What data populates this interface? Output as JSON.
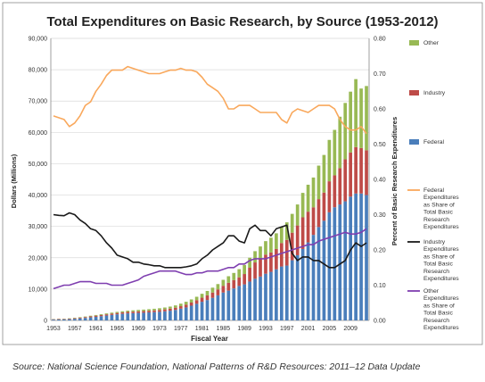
{
  "caption": "Source: National Science Foundation, National Patterns of R&D Resources: 2011–12 Data Update",
  "chart_data": {
    "type": "bar",
    "stacked": true,
    "title": "Total Expenditures on Basic Research, by Source (1953-2012)",
    "xlabel": "Fiscal Year",
    "ylabel": "Dollars (Millions)",
    "y2label": "Percent of Basic Research Expenditures",
    "ylim": [
      0,
      90000
    ],
    "y2lim": [
      0,
      0.8
    ],
    "yticks": [
      "0",
      "10,000",
      "20,000",
      "30,000",
      "40,000",
      "50,000",
      "60,000",
      "70,000",
      "80,000",
      "90,000"
    ],
    "y2ticks": [
      "0.00",
      "0.10",
      "0.20",
      "0.30",
      "0.40",
      "0.50",
      "0.60",
      "0.70",
      "0.80"
    ],
    "xticks": [
      "1953",
      "1957",
      "1961",
      "1965",
      "1969",
      "1973",
      "1977",
      "1981",
      "1985",
      "1989",
      "1993",
      "1997",
      "2001",
      "2005",
      "2009"
    ],
    "grid": "horizontal",
    "legend_position": "right",
    "colors": {
      "federal": "#4a7ebb",
      "industry": "#be4b48",
      "other": "#98b954",
      "federal_share": "#f9a85c",
      "industry_share": "#1a1a1a",
      "other_share": "#7f3fb0"
    },
    "x": [
      1953,
      1954,
      1955,
      1956,
      1957,
      1958,
      1959,
      1960,
      1961,
      1962,
      1963,
      1964,
      1965,
      1966,
      1967,
      1968,
      1969,
      1970,
      1971,
      1972,
      1973,
      1974,
      1975,
      1976,
      1977,
      1978,
      1979,
      1980,
      1981,
      1982,
      1983,
      1984,
      1985,
      1986,
      1987,
      1988,
      1989,
      1990,
      1991,
      1992,
      1993,
      1994,
      1995,
      1996,
      1997,
      1998,
      1999,
      2000,
      2001,
      2002,
      2003,
      2004,
      2005,
      2006,
      2007,
      2008,
      2009,
      2010,
      2011,
      2012
    ],
    "bar_series": [
      {
        "name": "Federal",
        "key": "federal",
        "values": [
          250,
          290,
          330,
          390,
          500,
          650,
          800,
          980,
          1150,
          1350,
          1550,
          1750,
          1950,
          2100,
          2250,
          2300,
          2400,
          2450,
          2550,
          2650,
          2750,
          2900,
          3100,
          3350,
          3750,
          4150,
          4700,
          5300,
          5950,
          6500,
          7200,
          8000,
          8900,
          9500,
          10200,
          11000,
          11500,
          12400,
          13300,
          14000,
          14900,
          15500,
          16300,
          17200,
          17500,
          19200,
          20800,
          22800,
          24900,
          27300,
          29800,
          31800,
          34500,
          36100,
          37000,
          38000,
          39500,
          40500,
          40500,
          40000
        ]
      },
      {
        "name": "Industry",
        "key": "industry",
        "values": [
          130,
          140,
          150,
          170,
          200,
          240,
          270,
          320,
          360,
          380,
          400,
          420,
          430,
          450,
          470,
          490,
          500,
          520,
          530,
          550,
          580,
          620,
          660,
          720,
          800,
          900,
          1000,
          1150,
          1300,
          1500,
          1700,
          1900,
          2150,
          2500,
          2650,
          2750,
          3300,
          4400,
          5200,
          5600,
          6100,
          6200,
          6500,
          7500,
          8200,
          8800,
          9500,
          10100,
          9800,
          8800,
          8900,
          9000,
          9900,
          10200,
          11600,
          13400,
          14100,
          14800,
          14500,
          14300
        ]
      },
      {
        "name": "Other",
        "key": "other",
        "values": [
          70,
          80,
          90,
          110,
          130,
          150,
          170,
          200,
          220,
          250,
          280,
          310,
          340,
          370,
          400,
          430,
          460,
          480,
          500,
          520,
          560,
          600,
          650,
          720,
          800,
          900,
          1000,
          1100,
          1250,
          1400,
          1550,
          1700,
          1900,
          2100,
          2300,
          2600,
          2900,
          3200,
          3600,
          4000,
          4300,
          4700,
          5000,
          5200,
          5600,
          6000,
          6700,
          7800,
          8600,
          9500,
          10700,
          12000,
          13200,
          14500,
          16400,
          18000,
          19400,
          21700,
          19000,
          20500
        ]
      }
    ],
    "line_series": [
      {
        "name": "Federal Expenditures as Share of Total Basic Research Expenditures",
        "key": "federal_share",
        "values": [
          0.58,
          0.575,
          0.57,
          0.55,
          0.56,
          0.58,
          0.61,
          0.62,
          0.65,
          0.67,
          0.695,
          0.71,
          0.71,
          0.71,
          0.72,
          0.715,
          0.71,
          0.705,
          0.7,
          0.7,
          0.7,
          0.705,
          0.71,
          0.71,
          0.715,
          0.71,
          0.71,
          0.705,
          0.69,
          0.67,
          0.66,
          0.65,
          0.63,
          0.6,
          0.6,
          0.61,
          0.61,
          0.61,
          0.6,
          0.59,
          0.59,
          0.59,
          0.59,
          0.57,
          0.56,
          0.59,
          0.6,
          0.595,
          0.59,
          0.6,
          0.61,
          0.61,
          0.61,
          0.6,
          0.57,
          0.55,
          0.54,
          0.54,
          0.55,
          0.53
        ]
      },
      {
        "name": "Industry Expenditures as Share of Total Basic Research Expenditures",
        "key": "industry_share",
        "values": [
          0.3,
          0.298,
          0.297,
          0.305,
          0.3,
          0.285,
          0.275,
          0.26,
          0.255,
          0.24,
          0.22,
          0.205,
          0.185,
          0.18,
          0.175,
          0.165,
          0.165,
          0.16,
          0.158,
          0.155,
          0.155,
          0.15,
          0.15,
          0.15,
          0.15,
          0.152,
          0.155,
          0.16,
          0.175,
          0.185,
          0.2,
          0.21,
          0.22,
          0.24,
          0.24,
          0.225,
          0.22,
          0.26,
          0.27,
          0.255,
          0.255,
          0.24,
          0.26,
          0.265,
          0.27,
          0.19,
          0.17,
          0.18,
          0.18,
          0.17,
          0.17,
          0.16,
          0.15,
          0.15,
          0.16,
          0.17,
          0.2,
          0.22,
          0.21,
          0.22
        ]
      },
      {
        "name": "Other Expenditures as Share of Total Basic Research Expenditures",
        "key": "other_share",
        "values": [
          0.09,
          0.095,
          0.1,
          0.1,
          0.105,
          0.11,
          0.11,
          0.11,
          0.105,
          0.105,
          0.105,
          0.1,
          0.1,
          0.1,
          0.105,
          0.11,
          0.115,
          0.125,
          0.13,
          0.135,
          0.14,
          0.14,
          0.14,
          0.14,
          0.135,
          0.13,
          0.13,
          0.135,
          0.135,
          0.14,
          0.14,
          0.14,
          0.145,
          0.15,
          0.15,
          0.16,
          0.16,
          0.17,
          0.175,
          0.175,
          0.175,
          0.18,
          0.185,
          0.19,
          0.195,
          0.2,
          0.205,
          0.21,
          0.215,
          0.215,
          0.225,
          0.23,
          0.235,
          0.24,
          0.245,
          0.25,
          0.245,
          0.245,
          0.25,
          0.26
        ]
      }
    ]
  }
}
